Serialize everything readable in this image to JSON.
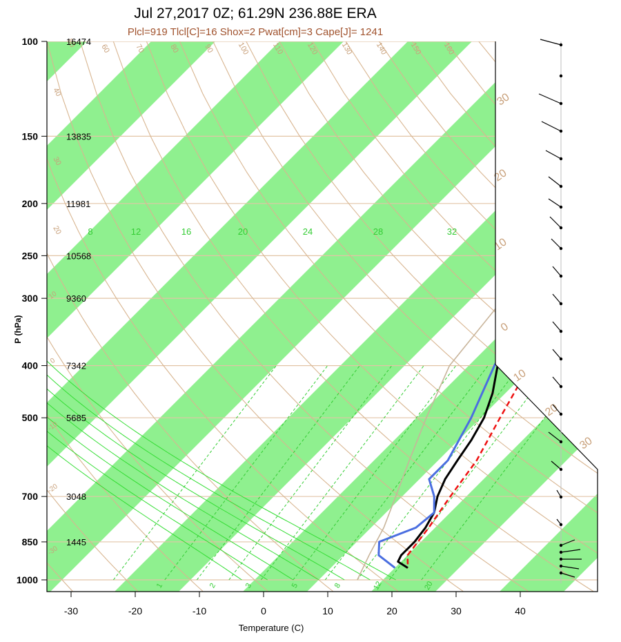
{
  "title": "Jul 27,2017 0Z; 61.29N 236.88E ERA",
  "subtitle": "Plcl=919 Tlcl[C]=16 Shox=2 Pwat[cm]=3 Cape[J]= 1241",
  "colors": {
    "band": "#8ff08f",
    "isotherm": "#e2c4a6",
    "dry_adiabat": "#d8b590",
    "moist_adiabat": "#33dd33",
    "mixing_ratio": "#33cc33",
    "temperature": "#000000",
    "dewpoint": "#4a6ee0",
    "parcel": "#ee1111",
    "virtual": "#c8b49a",
    "label_brown": "#c8a07a"
  },
  "chart_data": {
    "type": "skew-t",
    "xlabel": "Temperature (C)",
    "ylabel": "P (hPa)",
    "x_ticks": [
      -30,
      -20,
      -10,
      0,
      10,
      20,
      30,
      40
    ],
    "xlim": [
      -33,
      52
    ],
    "y_ticks": [
      100,
      150,
      200,
      250,
      300,
      400,
      500,
      700,
      850,
      1000
    ],
    "ylim": [
      1050,
      100
    ],
    "y_scale": "log",
    "height_labels": [
      {
        "p": 100,
        "label": "16474"
      },
      {
        "p": 150,
        "label": "13835"
      },
      {
        "p": 200,
        "label": "11981"
      },
      {
        "p": 250,
        "label": "10568"
      },
      {
        "p": 300,
        "label": "9360"
      },
      {
        "p": 400,
        "label": "7342"
      },
      {
        "p": 500,
        "label": "5685"
      },
      {
        "p": 700,
        "label": "3048"
      },
      {
        "p": 850,
        "label": "1445"
      }
    ],
    "isotherm_labels": [
      {
        "t": -40,
        "label": "-40"
      },
      {
        "t": -30,
        "label": "-30"
      },
      {
        "t": -20,
        "label": "-20"
      },
      {
        "t": -10,
        "label": "-10"
      },
      {
        "t": 0,
        "label": "0"
      },
      {
        "t": 10,
        "label": "10"
      },
      {
        "t": 20,
        "label": "20"
      },
      {
        "t": 30,
        "label": "30"
      }
    ],
    "dry_adiabat_labels": [
      "20",
      "30",
      "40",
      "50",
      "60",
      "70",
      "80",
      "90",
      "100",
      "110",
      "120",
      "130",
      "140",
      "150",
      "160",
      "-30",
      "-20",
      "-10",
      "0",
      "10",
      "20",
      "30"
    ],
    "moist_adiabat_labels": [
      "8",
      "12",
      "16",
      "20",
      "24",
      "28",
      "32"
    ],
    "mixing_ratio_labels": [
      "1",
      "2",
      "3",
      "5",
      "8",
      "12",
      "20"
    ],
    "series": [
      {
        "name": "temperature",
        "p": [
          100,
          150,
          175,
          200,
          225,
          300,
          400,
          450,
          500,
          550,
          600,
          650,
          700,
          750,
          800,
          850,
          900,
          925,
          950
        ],
        "t": [
          25,
          12,
          5,
          -4.5,
          -7.5,
          -1,
          4.5,
          8,
          10.5,
          12,
          13,
          14,
          15.5,
          17.5,
          18.5,
          19,
          19,
          19.5,
          22
        ]
      },
      {
        "name": "dewpoint",
        "p": [
          100,
          120,
          150,
          175,
          200,
          225,
          300,
          400,
          500,
          600,
          650,
          700,
          750,
          800,
          850,
          900,
          950
        ],
        "t": [
          -7.5,
          -13.5,
          -16,
          -13.5,
          -7,
          -7.5,
          -1,
          4,
          8.5,
          11.5,
          11.5,
          15,
          17.5,
          17,
          13.5,
          15.5,
          20
        ]
      },
      {
        "name": "parcel",
        "p": [
          225,
          300,
          400,
          500,
          600,
          700,
          800,
          900,
          950
        ],
        "t": [
          -6.5,
          2,
          9.5,
          13,
          16,
          17.5,
          19,
          20,
          22
        ]
      },
      {
        "name": "virtual",
        "p": [
          225,
          300,
          400,
          500,
          600,
          700,
          800,
          900,
          1000
        ],
        "t": [
          -6.5,
          -5,
          -3,
          1.5,
          5.5,
          9,
          12,
          14,
          16
        ]
      }
    ]
  }
}
